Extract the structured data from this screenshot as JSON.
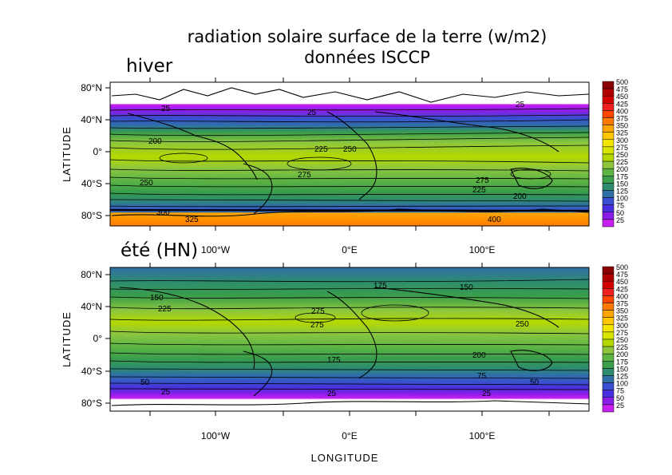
{
  "figure": {
    "title_line1": "radiation solaire surface de la terre (w/m2)",
    "title_line2": "données ISCCP"
  },
  "panels": [
    {
      "season_label": "hiver",
      "ylabel": "LATITUDE",
      "lat_ticks": [
        "80°N",
        "40°N",
        "0°",
        "40°S",
        "80°S"
      ],
      "contour_labels": [
        "25",
        "25",
        "25",
        "200",
        "225",
        "250",
        "275",
        "275",
        "250",
        "225",
        "200",
        "300",
        "325",
        "400"
      ]
    },
    {
      "season_label": "été (HN)",
      "ylabel": "LATITUDE",
      "lat_ticks": [
        "80°N",
        "40°N",
        "0°",
        "40°S",
        "80°S"
      ],
      "contour_labels": [
        "175",
        "150",
        "150",
        "225",
        "275",
        "275",
        "250",
        "200",
        "175",
        "75",
        "50",
        "50",
        "25",
        "25",
        "25"
      ]
    }
  ],
  "lon_ticks_top": [
    "100°W",
    "0°E",
    "100°E"
  ],
  "lon_ticks_bottom": [
    "100°W",
    "0°E",
    "100°E"
  ],
  "xlabel": "LONGITUDE",
  "colorbar": {
    "levels": [
      "500",
      "475",
      "450",
      "425",
      "400",
      "375",
      "350",
      "325",
      "300",
      "275",
      "250",
      "225",
      "200",
      "175",
      "150",
      "125",
      "100",
      "75",
      "50",
      "25"
    ],
    "colors": [
      "#8b0000",
      "#b00000",
      "#d40000",
      "#ee2020",
      "#ff4500",
      "#ff7a00",
      "#ffa500",
      "#ffc800",
      "#f2e600",
      "#d7e600",
      "#b5d900",
      "#8cc63f",
      "#5fb544",
      "#3a9e4a",
      "#2d8c6e",
      "#2f6fa8",
      "#3a4fcf",
      "#4a2fe0",
      "#8a1ee8",
      "#c81ef0"
    ]
  }
}
